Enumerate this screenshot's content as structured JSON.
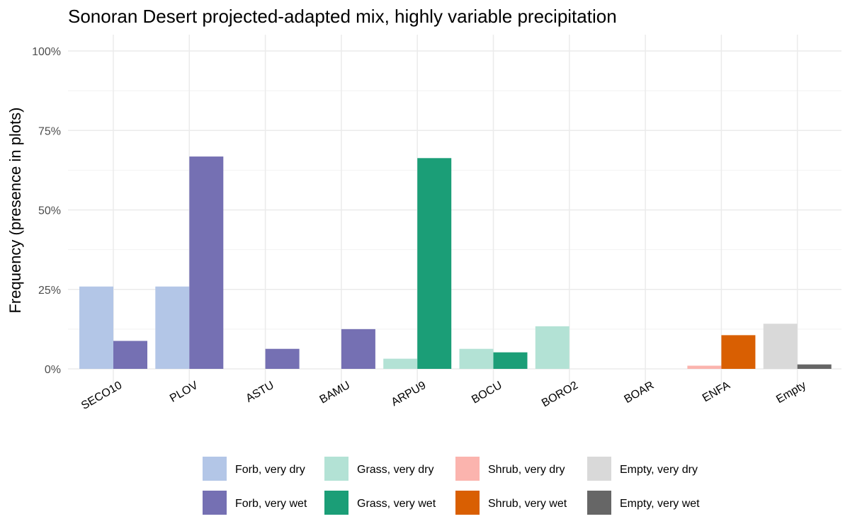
{
  "chart_data": {
    "type": "bar",
    "title": "Sonoran Desert projected-adapted mix, highly variable precipitation",
    "ylabel": "Frequency (presence in plots)",
    "xlabel": "",
    "ylim": [
      0,
      100
    ],
    "yticks": [
      0,
      25,
      50,
      75,
      100
    ],
    "ytick_labels": [
      "0%",
      "25%",
      "50%",
      "75%",
      "100%"
    ],
    "grid": true,
    "legend_position": "bottom",
    "categories": [
      "SECO10",
      "PLOV",
      "ASTU",
      "BAMU",
      "ARPU9",
      "BOCU",
      "BORO2",
      "BOAR",
      "ENFA",
      "Empty"
    ],
    "bars": [
      {
        "category": "SECO10",
        "side": "dry",
        "group": "Forb",
        "value": 25.9
      },
      {
        "category": "SECO10",
        "side": "wet",
        "group": "Forb",
        "value": 8.8
      },
      {
        "category": "PLOV",
        "side": "dry",
        "group": "Forb",
        "value": 25.9
      },
      {
        "category": "PLOV",
        "side": "wet",
        "group": "Forb",
        "value": 66.8
      },
      {
        "category": "ASTU",
        "side": "wet",
        "group": "Forb",
        "value": 6.3
      },
      {
        "category": "BAMU",
        "side": "wet",
        "group": "Forb",
        "value": 12.5
      },
      {
        "category": "ARPU9",
        "side": "dry",
        "group": "Grass",
        "value": 3.2
      },
      {
        "category": "ARPU9",
        "side": "wet",
        "group": "Grass",
        "value": 66.3
      },
      {
        "category": "BOCU",
        "side": "dry",
        "group": "Grass",
        "value": 6.3
      },
      {
        "category": "BOCU",
        "side": "wet",
        "group": "Grass",
        "value": 5.2
      },
      {
        "category": "BORO2",
        "side": "dry",
        "group": "Grass",
        "value": 13.4
      },
      {
        "category": "ENFA",
        "side": "dry",
        "group": "Shrub",
        "value": 1.0
      },
      {
        "category": "ENFA",
        "side": "wet",
        "group": "Shrub",
        "value": 10.6
      },
      {
        "category": "Empty",
        "side": "dry",
        "group": "Empty",
        "value": 14.2
      },
      {
        "category": "Empty",
        "side": "wet",
        "group": "Empty",
        "value": 1.4
      }
    ],
    "legend": {
      "columns": [
        {
          "dry": "Forb, very dry",
          "wet": "Forb, very wet"
        },
        {
          "dry": "Grass, very dry",
          "wet": "Grass, very wet"
        },
        {
          "dry": "Shrub, very dry",
          "wet": "Shrub, very wet"
        },
        {
          "dry": "Empty, very dry",
          "wet": "Empty, very wet"
        }
      ]
    },
    "colors": {
      "Forb": {
        "dry": "#b3c6e7",
        "wet": "#7570b3"
      },
      "Grass": {
        "dry": "#b3e2d5",
        "wet": "#1b9e77"
      },
      "Shrub": {
        "dry": "#fbb4ae",
        "wet": "#d95f02"
      },
      "Empty": {
        "dry": "#d9d9d9",
        "wet": "#666666"
      }
    }
  }
}
